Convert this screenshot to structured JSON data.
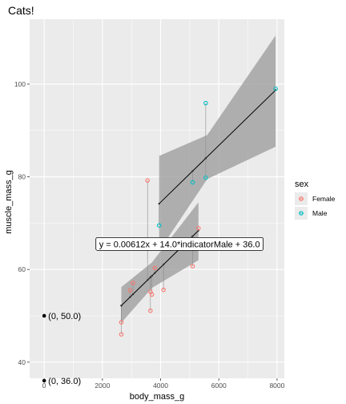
{
  "chart_data": {
    "type": "scatter",
    "title": "Cats!",
    "xlabel": "body_mass_g",
    "ylabel": "muscle_mass_g",
    "xlim": [
      -500,
      8250
    ],
    "ylim": [
      36.5,
      114
    ],
    "x_ticks": [
      0,
      2000,
      4000,
      6000,
      8000
    ],
    "y_ticks": [
      40,
      60,
      80,
      100
    ],
    "grid": true,
    "legend": {
      "title": "sex",
      "placement": "right",
      "entries": [
        {
          "label": "Female",
          "color": "#F8766D"
        },
        {
          "label": "Male",
          "color": "#00BFC4"
        }
      ]
    },
    "series": [
      {
        "name": "Female",
        "color": "#F8766D",
        "points": [
          {
            "x": 2650,
            "y": 46.0
          },
          {
            "x": 2650,
            "y": 48.6
          },
          {
            "x": 2950,
            "y": 55.5
          },
          {
            "x": 3050,
            "y": 57.1
          },
          {
            "x": 3550,
            "y": 79.2
          },
          {
            "x": 3650,
            "y": 51.1
          },
          {
            "x": 3650,
            "y": 55.2
          },
          {
            "x": 3700,
            "y": 54.6
          },
          {
            "x": 3800,
            "y": 60.3
          },
          {
            "x": 4100,
            "y": 55.6
          },
          {
            "x": 5100,
            "y": 60.7
          },
          {
            "x": 5300,
            "y": 68.9
          }
        ]
      },
      {
        "name": "Male",
        "color": "#00BFC4",
        "points": [
          {
            "x": 3950,
            "y": 69.5
          },
          {
            "x": 5100,
            "y": 78.8
          },
          {
            "x": 5550,
            "y": 79.8
          },
          {
            "x": 5550,
            "y": 95.9
          },
          {
            "x": 7950,
            "y": 99.0
          }
        ]
      }
    ],
    "fits": [
      {
        "group": "Female",
        "x": [
          2650,
          5300
        ],
        "y": [
          52.2,
          68.4
        ],
        "band": [
          [
            2650,
            48.5,
            56.2
          ],
          [
            3700,
            56.0,
            61.5
          ],
          [
            5300,
            62.0,
            74.5
          ]
        ]
      },
      {
        "group": "Male",
        "x": [
          3950,
          7950
        ],
        "y": [
          74.2,
          98.7
        ],
        "band": [
          [
            3950,
            64.0,
            84.5
          ],
          [
            5600,
            79.5,
            89.0
          ],
          [
            7950,
            86.5,
            110.5
          ]
        ]
      }
    ],
    "annotations": [
      {
        "text": "y = 0.00612x + 14.0*indicatorMale + 36.0",
        "x": 4650,
        "y": 65.5,
        "boxed": true
      },
      {
        "text": "(0, 50.0)",
        "x": 0,
        "y": 50.0,
        "point": true
      },
      {
        "text": "(0, 36.0)",
        "x": 0,
        "y": 36.0,
        "point": true
      }
    ]
  }
}
